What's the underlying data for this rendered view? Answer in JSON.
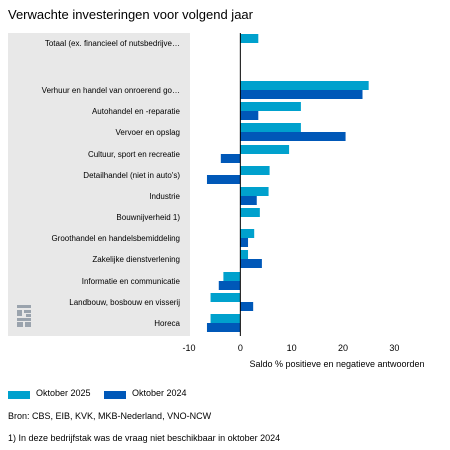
{
  "chart_data": {
    "type": "bar",
    "orientation": "horizontal",
    "title": "Verwachte investeringen voor volgend jaar",
    "xlabel": "Saldo % positieve en negatieve antwoorden",
    "xlim": [
      -10,
      35
    ],
    "xticks": [
      -10,
      0,
      10,
      20,
      30
    ],
    "categories": [
      "Totaal (ex. financieel of nutsbedrijve…",
      "Verhuur en handel van onroerend go…",
      "Autohandel en -reparatie",
      "Vervoer en opslag",
      "Cultuur, sport en recreatie",
      "Detailhandel (niet in auto's)",
      "Industrie",
      "Bouwnijverheid 1)",
      "Groothandel en handelsbemiddeling",
      "Zakelijke dienstverlening",
      "Informatie en communicatie",
      "Landbouw, bosbouw en visserij",
      "Horeca"
    ],
    "series": [
      {
        "name": "Oktober 2025",
        "color": "#00a1cd",
        "values": [
          3.5,
          25,
          11.8,
          11.8,
          9.5,
          5.7,
          5.5,
          3.8,
          2.7,
          1.5,
          -3.3,
          -5.8,
          -5.8
        ]
      },
      {
        "name": "Oktober 2024",
        "color": "#0058b8",
        "values": [
          null,
          23.8,
          3.5,
          20.5,
          -3.8,
          -6.5,
          3.2,
          null,
          1.5,
          4.2,
          -4.2,
          2.5,
          -6.5
        ]
      }
    ],
    "legend_position": "bottom",
    "grid": false
  },
  "source": "Bron: CBS, EIB, KVK, MKB-Nederland, VNO-NCW",
  "footnote": "1) In deze bedrijfstak was de vraag niet beschikbaar in oktober 2024",
  "logo_icon": "cbs-logo-icon"
}
